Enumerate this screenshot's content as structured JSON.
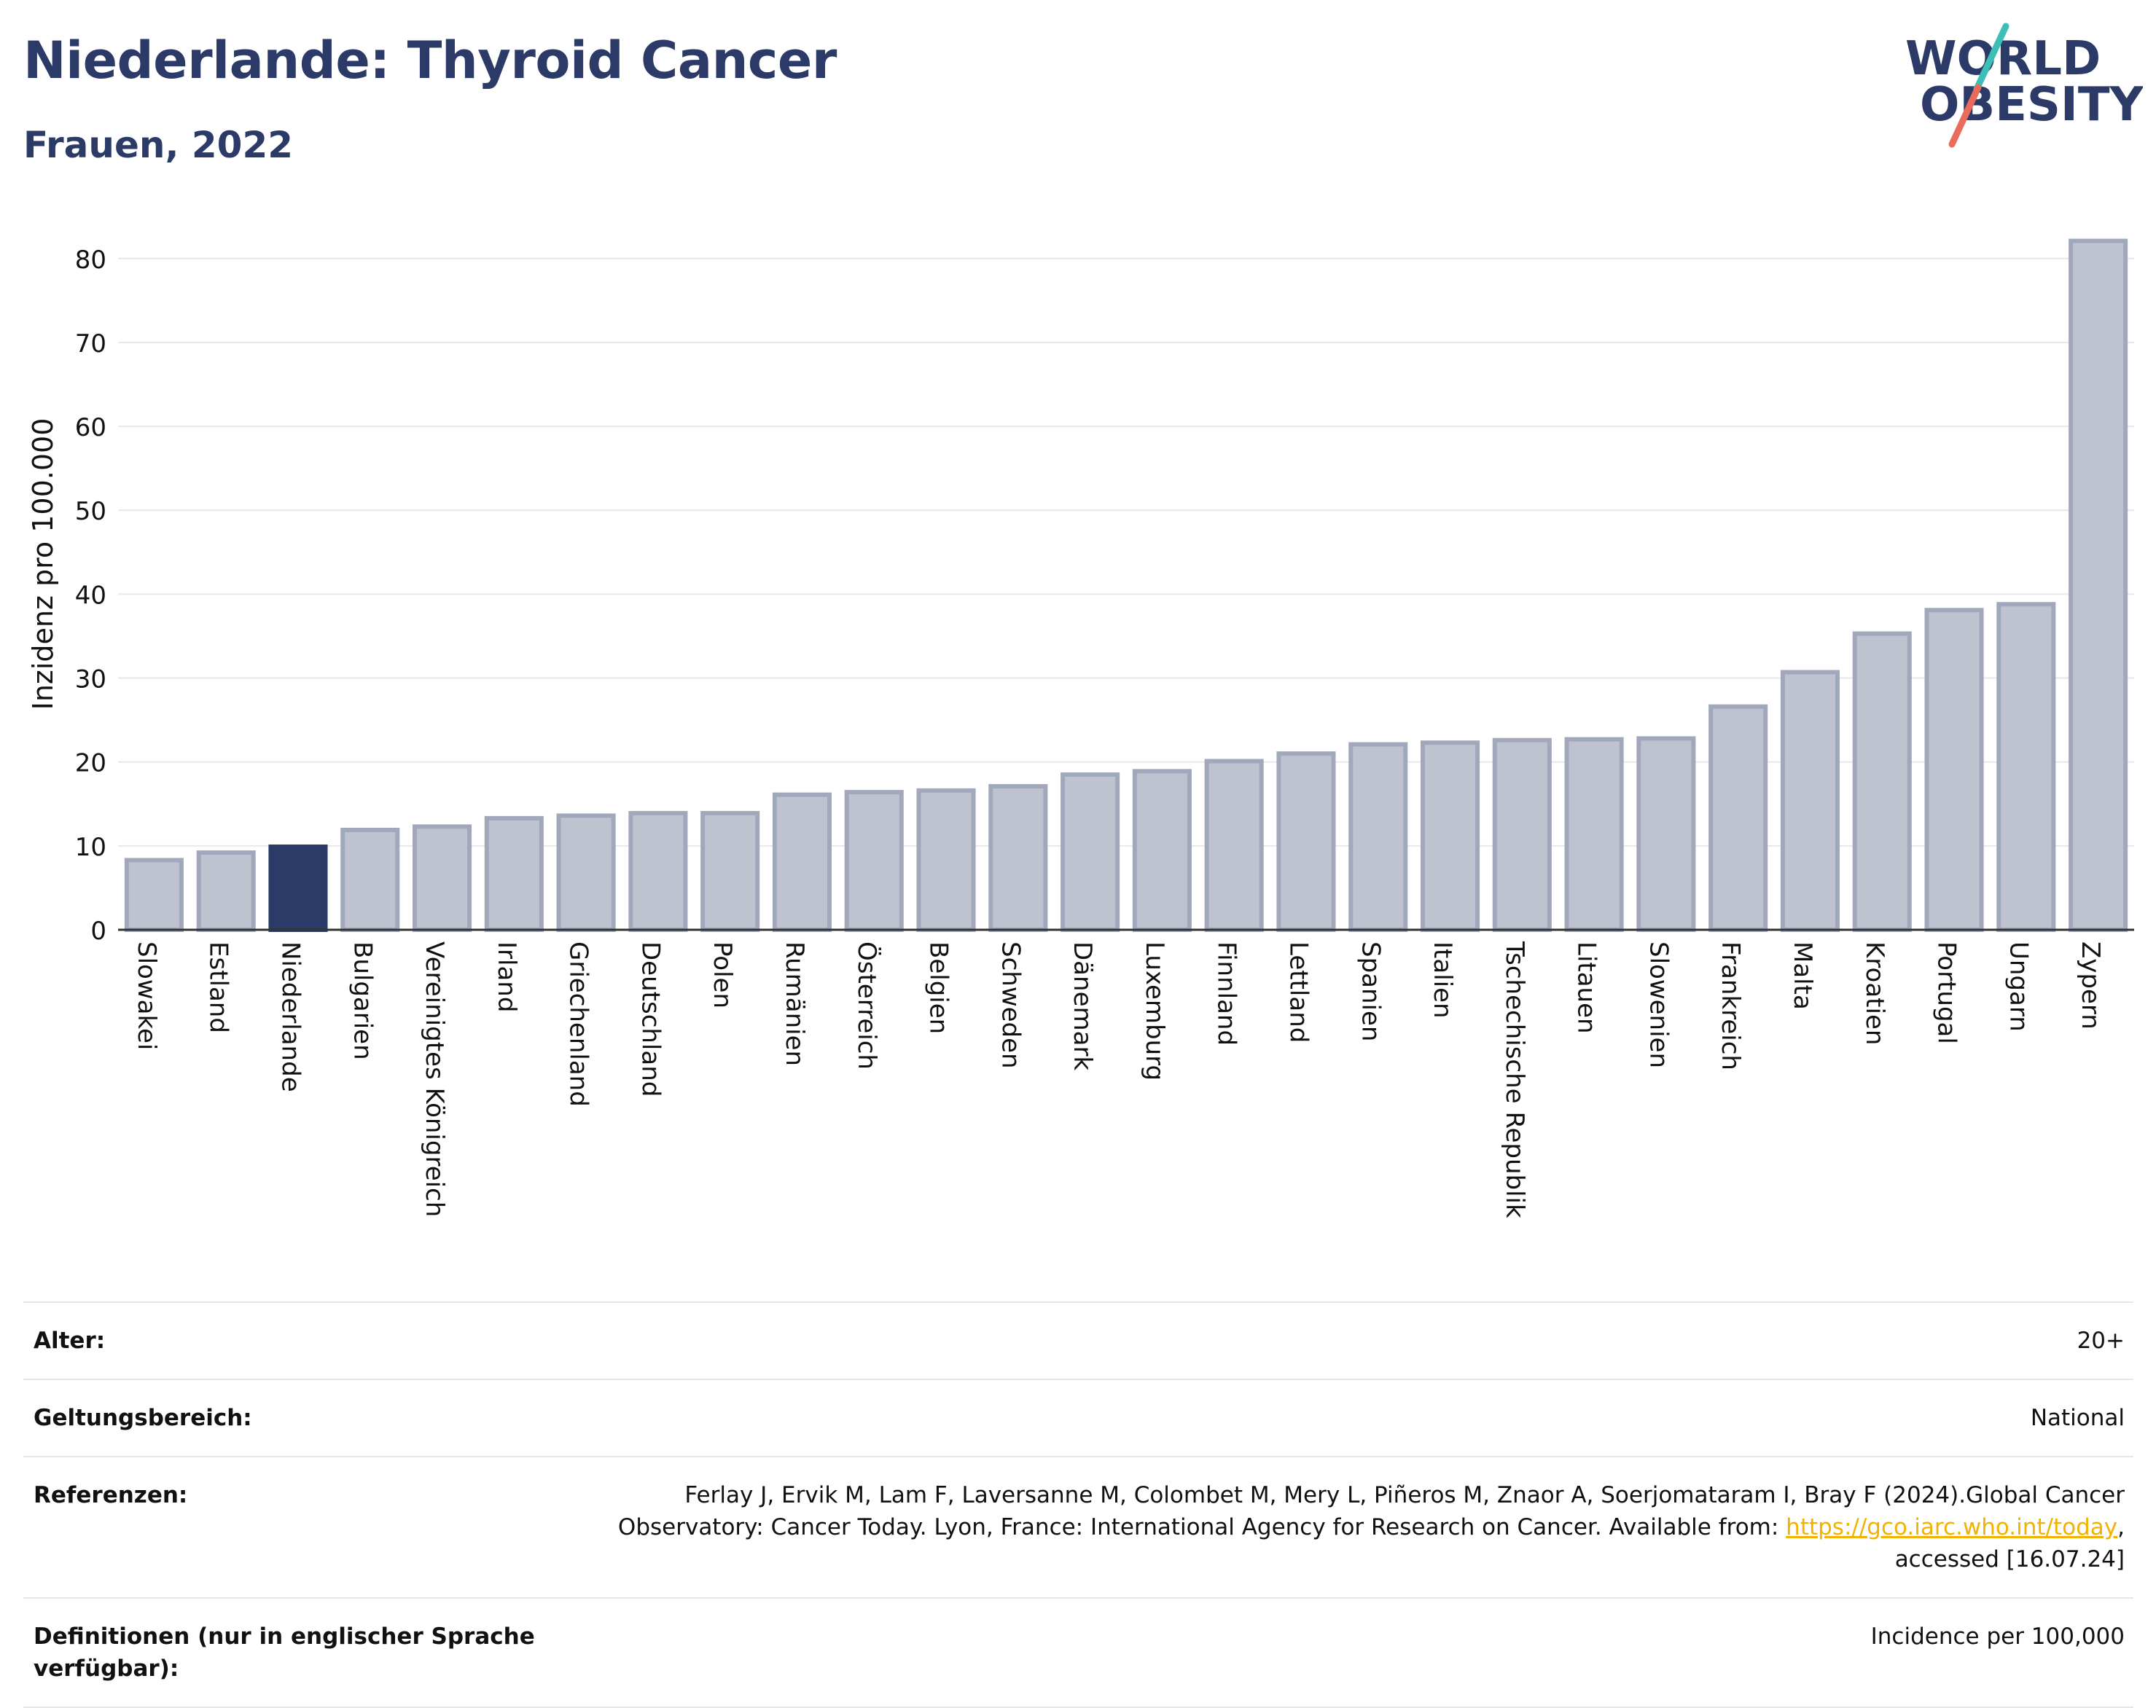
{
  "title": "Niederlande: Thyroid Cancer",
  "subtitle": "Frauen, 2022",
  "logo": {
    "line1": "WORLD",
    "line2": "OBESITY"
  },
  "colors": {
    "title": "#2b3a67",
    "bar_default": "#bfc3d0",
    "bar_default_stroke": "#a2a8bc",
    "bar_highlight": "#2b3a67",
    "link": "#f2b300",
    "logo_teal": "#3cbfb6",
    "logo_coral": "#ea6a5b"
  },
  "chart_data": {
    "type": "bar",
    "title": "Niederlande: Thyroid Cancer",
    "subtitle": "Frauen, 2022",
    "xlabel": "",
    "ylabel": "Inzidenz pro 100.000",
    "ylim": [
      0,
      82.5
    ],
    "yticks": [
      0,
      10,
      20,
      30,
      40,
      50,
      60,
      70,
      80
    ],
    "grid": true,
    "highlight": "Niederlande",
    "categories": [
      "Slowakei",
      "Estland",
      "Niederlande",
      "Bulgarien",
      "Vereinigtes Königreich",
      "Irland",
      "Griechenland",
      "Deutschland",
      "Polen",
      "Rumänien",
      "Österreich",
      "Belgien",
      "Schweden",
      "Dänemark",
      "Luxemburg",
      "Finnland",
      "Lettland",
      "Spanien",
      "Italien",
      "Tschechische Republik",
      "Litauen",
      "Slowenien",
      "Frankreich",
      "Malta",
      "Kroatien",
      "Portugal",
      "Ungarn",
      "Zypern"
    ],
    "values": [
      8.3,
      9.2,
      9.9,
      11.9,
      12.3,
      13.3,
      13.6,
      13.9,
      13.9,
      16.1,
      16.4,
      16.6,
      17.1,
      18.5,
      18.9,
      20.1,
      21.0,
      22.1,
      22.3,
      22.6,
      22.7,
      22.8,
      26.6,
      30.7,
      35.3,
      38.1,
      38.8,
      82.1
    ]
  },
  "info": [
    {
      "label": "Alter:",
      "value": "20+"
    },
    {
      "label": "Geltungsbereich:",
      "value": "National"
    },
    {
      "label": "Referenzen:",
      "value_before": "Ferlay J, Ervik M, Lam F, Laversanne M, Colombet M, Mery L, Piñeros M, Znaor A, Soerjomataram I, Bray F (2024).Global Cancer Observatory: Cancer Today. Lyon, France: International Agency for Research on Cancer. Available from: ",
      "link": "https://gco.iarc.who.int/today",
      "value_after": ", accessed [16.07.24]"
    },
    {
      "label": "Definitionen (nur in englischer Sprache verfügbar):",
      "value": "Incidence per 100,000"
    }
  ]
}
